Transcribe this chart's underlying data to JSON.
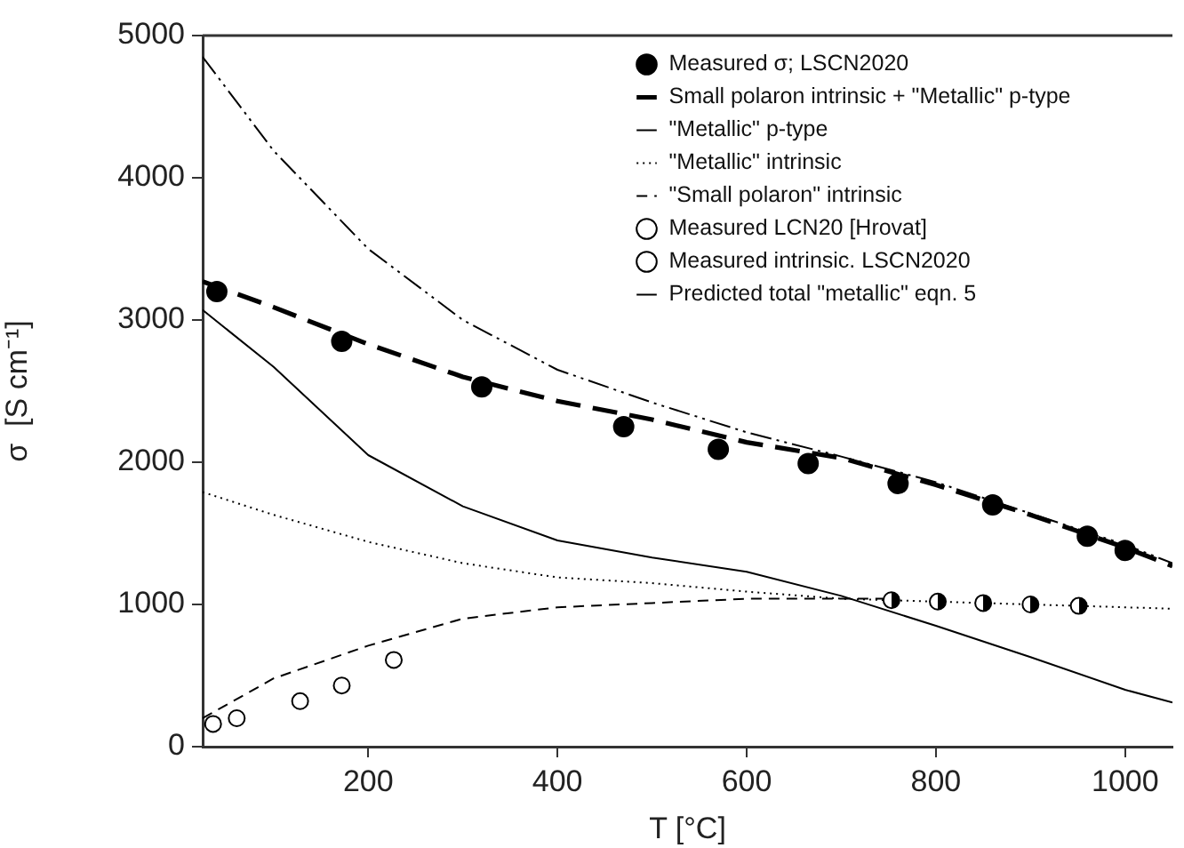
{
  "chart_data": {
    "type": "line",
    "xlabel": "T [°C]",
    "ylabel": "σ  [S cm⁻¹]",
    "xlim": [
      25,
      1050
    ],
    "ylim": [
      0,
      5000
    ],
    "xticks": [
      200,
      400,
      600,
      800,
      1000
    ],
    "yticks": [
      0,
      1000,
      2000,
      3000,
      4000,
      5000
    ],
    "grid": false,
    "legend": "top right",
    "series": [
      {
        "name": "Measured σ; LSCN2020",
        "type": "scatter",
        "marker": "circle",
        "color": "#000000",
        "x": [
          40,
          172,
          320,
          470,
          570,
          665,
          760,
          860,
          960,
          1000
        ],
        "values": [
          3200,
          2850,
          2530,
          2250,
          2090,
          1990,
          1850,
          1700,
          1480,
          1380
        ]
      },
      {
        "name": "Small polaron intrinsic + \"Metallic\" p-type",
        "line_style": "dashed",
        "color": "#000000",
        "x": [
          25,
          100,
          200,
          300,
          400,
          500,
          600,
          700,
          800,
          900,
          1000,
          1050
        ],
        "values": [
          3270,
          3090,
          2830,
          2600,
          2430,
          2300,
          2140,
          2030,
          1840,
          1630,
          1400,
          1270
        ]
      },
      {
        "name": "\"Metallic\" p-type",
        "line_style": "solid",
        "color": "#000000",
        "x": [
          25,
          100,
          200,
          300,
          400,
          500,
          600,
          700,
          800,
          900,
          1000,
          1050
        ],
        "values": [
          3070,
          2670,
          2050,
          1690,
          1450,
          1330,
          1230,
          1060,
          850,
          630,
          400,
          310
        ]
      },
      {
        "name": "\"Metallic\" intrinsic",
        "line_style": "dotted",
        "color": "#000000",
        "x": [
          25,
          100,
          200,
          300,
          400,
          500,
          600,
          700,
          800,
          900,
          1000,
          1050
        ],
        "values": [
          1790,
          1630,
          1440,
          1290,
          1190,
          1150,
          1090,
          1040,
          1020,
          1000,
          980,
          970
        ]
      },
      {
        "name": "\"Small polaron\" intrinsic",
        "line_style": "dashed",
        "color": "#000000",
        "x": [
          25,
          100,
          200,
          300,
          400,
          500,
          600,
          700,
          750
        ],
        "values": [
          200,
          480,
          710,
          900,
          980,
          1010,
          1040,
          1040,
          1040
        ]
      },
      {
        "name": "Measured LCN20 [Hrovat]",
        "type": "scatter",
        "marker": "circle",
        "color": "#000000",
        "x": [
          36,
          61,
          128,
          172,
          227
        ],
        "values": [
          160,
          200,
          320,
          430,
          610
        ]
      },
      {
        "name": "Measured intrinsic. LSCN2020",
        "type": "scatter",
        "marker": "circle",
        "color": "#000000",
        "x": [
          753,
          802,
          850,
          900,
          951
        ],
        "values": [
          1030,
          1020,
          1010,
          1000,
          990
        ]
      },
      {
        "name": "Predicted total \"metallic\" eqn. 5",
        "line_style": "dashdot",
        "color": "#000000",
        "x": [
          25,
          100,
          200,
          300,
          400,
          500,
          600,
          700,
          800,
          900,
          1000,
          1050
        ],
        "values": [
          4850,
          4190,
          3500,
          3000,
          2650,
          2420,
          2210,
          2040,
          1860,
          1640,
          1420,
          1290
        ]
      }
    ]
  }
}
